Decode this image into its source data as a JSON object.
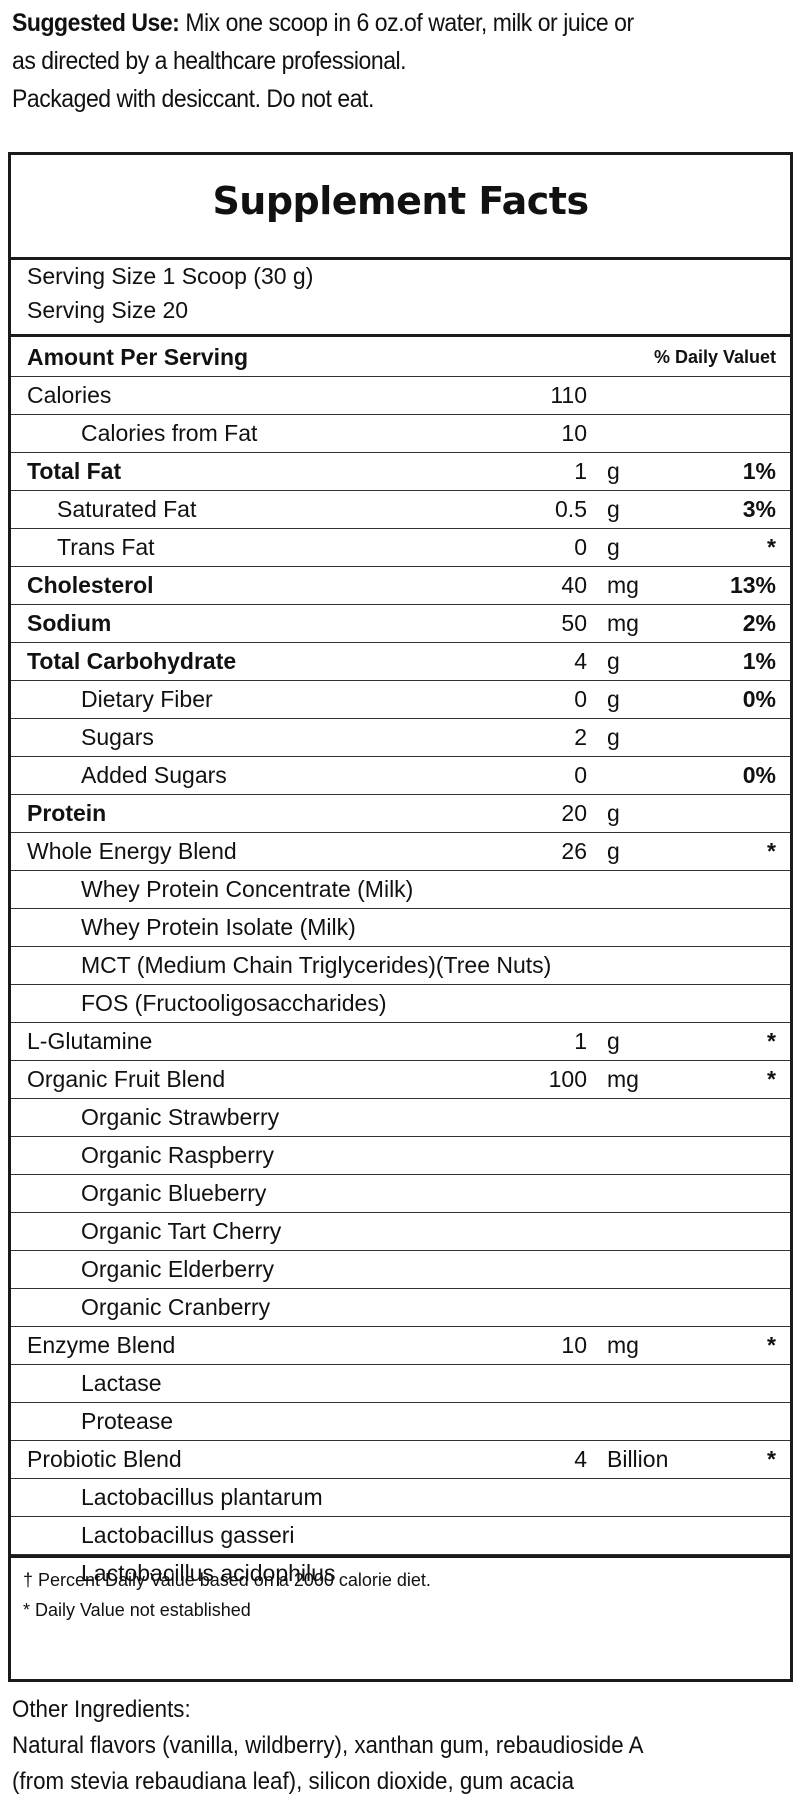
{
  "suggested_use": {
    "label": "Suggested Use:",
    "line1": " Mix one scoop in 6 oz.of water, milk or juice or",
    "line2": "as directed by a healthcare professional.",
    "line3": "Packaged with desiccant. Do not eat."
  },
  "panel": {
    "title": "Supplement Facts",
    "serving_size": "Serving Size 1 Scoop (30 g)",
    "servings": "Serving Size 20",
    "header": {
      "amount_label": "Amount Per Serving",
      "dv_label": "% Daily Valuet"
    },
    "rows": [
      {
        "name": "Calories",
        "amount": "110",
        "unit": "",
        "dv": "",
        "level": 0,
        "bold": false
      },
      {
        "name": "Calories from Fat",
        "amount": "10",
        "unit": "",
        "dv": "",
        "level": 2,
        "bold": false
      },
      {
        "name": "Total Fat",
        "amount": "1",
        "unit": "g",
        "dv": "1%",
        "level": 0,
        "bold": true
      },
      {
        "name": "Saturated Fat",
        "amount": "0.5",
        "unit": "g",
        "dv": "3%",
        "level": 1,
        "bold": false
      },
      {
        "name": "Trans Fat",
        "amount": "0",
        "unit": "g",
        "dv": "*",
        "level": 1,
        "bold": false
      },
      {
        "name": "Cholesterol",
        "amount": "40",
        "unit": "mg",
        "dv": "13%",
        "level": 0,
        "bold": true
      },
      {
        "name": "Sodium",
        "amount": "50",
        "unit": "mg",
        "dv": "2%",
        "level": 0,
        "bold": true
      },
      {
        "name": "Total Carbohydrate",
        "amount": "4",
        "unit": "g",
        "dv": "1%",
        "level": 0,
        "bold": true
      },
      {
        "name": "Dietary Fiber",
        "amount": "0",
        "unit": "g",
        "dv": "0%",
        "level": 2,
        "bold": false
      },
      {
        "name": "Sugars",
        "amount": "2",
        "unit": "g",
        "dv": "",
        "level": 2,
        "bold": false
      },
      {
        "name": "Added Sugars",
        "amount": "0",
        "unit": "",
        "dv": "0%",
        "level": 2,
        "bold": false
      },
      {
        "name": "Protein",
        "amount": "20",
        "unit": "g",
        "dv": "",
        "level": 0,
        "bold": true
      },
      {
        "name": "Whole Energy Blend",
        "amount": "26",
        "unit": "g",
        "dv": "*",
        "level": 0,
        "bold": false
      },
      {
        "name": "Whey Protein Concentrate (Milk)",
        "amount": "",
        "unit": "",
        "dv": "",
        "level": 2,
        "bold": false
      },
      {
        "name": "Whey Protein Isolate (Milk)",
        "amount": "",
        "unit": "",
        "dv": "",
        "level": 2,
        "bold": false
      },
      {
        "name": "MCT (Medium Chain Triglycerides)(Tree Nuts)",
        "amount": "",
        "unit": "",
        "dv": "",
        "level": 2,
        "bold": false
      },
      {
        "name": "FOS (Fructooligosaccharides)",
        "amount": "",
        "unit": "",
        "dv": "",
        "level": 2,
        "bold": false
      },
      {
        "name": "L-Glutamine",
        "amount": "1",
        "unit": "g",
        "dv": "*",
        "level": 0,
        "bold": false
      },
      {
        "name": "Organic Fruit Blend",
        "amount": "100",
        "unit": "mg",
        "dv": "*",
        "level": 0,
        "bold": false
      },
      {
        "name": "Organic Strawberry",
        "amount": "",
        "unit": "",
        "dv": "",
        "level": 2,
        "bold": false
      },
      {
        "name": "Organic Raspberry",
        "amount": "",
        "unit": "",
        "dv": "",
        "level": 2,
        "bold": false
      },
      {
        "name": "Organic Blueberry",
        "amount": "",
        "unit": "",
        "dv": "",
        "level": 2,
        "bold": false
      },
      {
        "name": "Organic Tart Cherry",
        "amount": "",
        "unit": "",
        "dv": "",
        "level": 2,
        "bold": false
      },
      {
        "name": "Organic Elderberry",
        "amount": "",
        "unit": "",
        "dv": "",
        "level": 2,
        "bold": false
      },
      {
        "name": "Organic Cranberry",
        "amount": "",
        "unit": "",
        "dv": "",
        "level": 2,
        "bold": false
      },
      {
        "name": "Enzyme Blend",
        "amount": "10",
        "unit": "mg",
        "dv": "*",
        "level": 0,
        "bold": false
      },
      {
        "name": "Lactase",
        "amount": "",
        "unit": "",
        "dv": "",
        "level": 2,
        "bold": false
      },
      {
        "name": "Protease",
        "amount": "",
        "unit": "",
        "dv": "",
        "level": 2,
        "bold": false
      },
      {
        "name": "Probiotic Blend",
        "amount": "4",
        "unit": "Billion",
        "dv": "*",
        "level": 0,
        "bold": false
      },
      {
        "name": "Lactobacillus plantarum",
        "amount": "",
        "unit": "",
        "dv": "",
        "level": 2,
        "bold": false
      },
      {
        "name": "Lactobacillus gasseri",
        "amount": "",
        "unit": "",
        "dv": "",
        "level": 2,
        "bold": false
      },
      {
        "name": "Lactobacillus acidophilus",
        "amount": "",
        "unit": "",
        "dv": "",
        "level": 2,
        "bold": false
      }
    ],
    "footnote1": "† Percent Daily Value based on a 2000 calorie diet.",
    "footnote2": "* Daily Value not established"
  },
  "other_ingredients": {
    "label": "Other Ingredients:",
    "line1": "Natural flavors (vanilla, wildberry), xanthan gum, rebaudioside A",
    "line2": "(from stevia rebaudiana leaf), silicon dioxide, gum acacia"
  }
}
